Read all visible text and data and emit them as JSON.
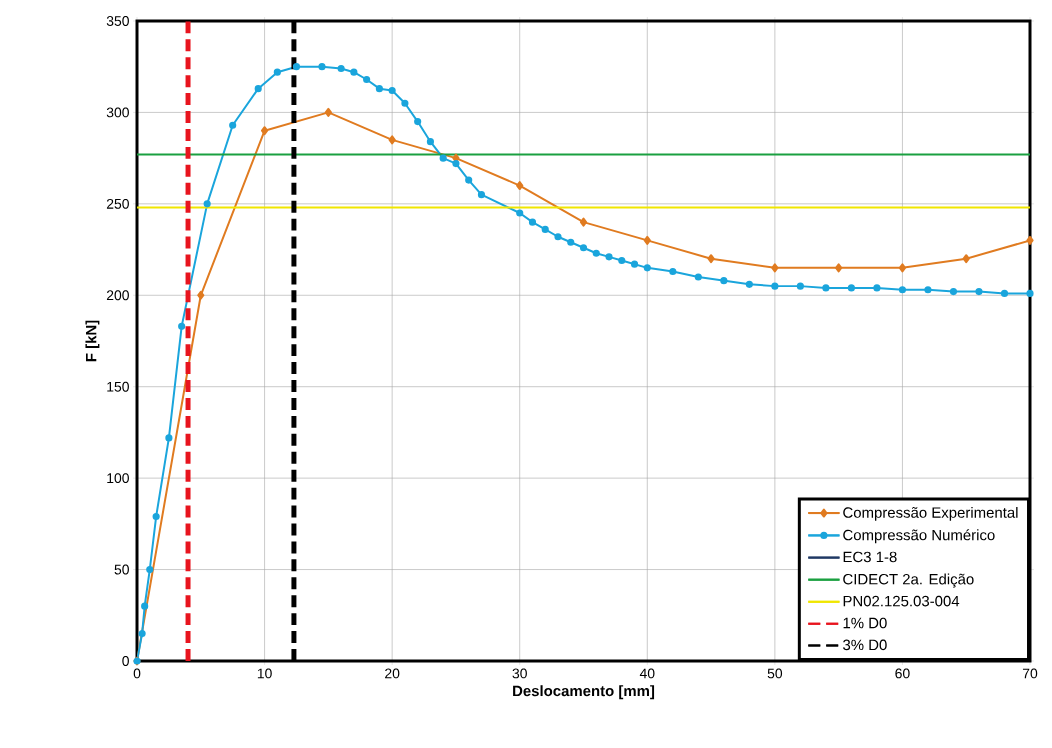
{
  "chart_data": {
    "type": "line",
    "xlabel": "Deslocamento  [mm]",
    "ylabel": "F [kN]",
    "xlim": [
      0,
      70
    ],
    "ylim": [
      0,
      350
    ],
    "xticks": [
      0,
      10,
      20,
      30,
      40,
      50,
      60,
      70
    ],
    "yticks": [
      0,
      50,
      100,
      150,
      200,
      250,
      300,
      350
    ],
    "grid": true,
    "legend": "bottom right",
    "series": [
      {
        "name": "Compressão Experimental",
        "color": "#e07b20",
        "marker": "diamond",
        "x": [
          0,
          5,
          10,
          15,
          20,
          25,
          30,
          35,
          40,
          45,
          50,
          55,
          60,
          65,
          70
        ],
        "values": [
          0,
          200,
          290,
          300,
          285,
          275,
          260,
          240,
          230,
          220,
          215,
          215,
          215,
          220,
          230
        ]
      },
      {
        "name": "Compressão Numérico",
        "color": "#1aa5dc",
        "marker": "circle",
        "x": [
          0,
          0.4,
          0.6,
          1,
          1.5,
          2.5,
          3.5,
          5.5,
          7.5,
          9.5,
          11,
          12.5,
          14.5,
          16,
          17,
          18,
          19,
          20,
          21,
          22,
          23,
          24,
          25,
          26,
          27,
          30,
          31,
          32,
          33,
          34,
          35,
          36,
          37,
          38,
          39,
          40,
          42,
          44,
          46,
          48,
          50,
          52,
          54,
          56,
          58,
          60,
          62,
          64,
          66,
          68,
          70
        ],
        "values": [
          0,
          15,
          30,
          50,
          79,
          122,
          183,
          250,
          293,
          313,
          322,
          325,
          325,
          324,
          322,
          318,
          313,
          312,
          305,
          295,
          284,
          275,
          272,
          263,
          255,
          245,
          240,
          236,
          232,
          229,
          226,
          223,
          221,
          219,
          217,
          215,
          213,
          210,
          208,
          206,
          205,
          205,
          204,
          204,
          204,
          203,
          203,
          202,
          202,
          201,
          201
        ]
      },
      {
        "name": "EC3 1-8",
        "color": "#1f3864",
        "marker": "none",
        "values": [
          null,
          null
        ]
      },
      {
        "name": "CIDECT 2a. Edição",
        "color": "#1aa040",
        "marker": "none",
        "x": [
          0,
          70
        ],
        "values": [
          277,
          277
        ]
      },
      {
        "name": "PN02.125.03-004",
        "color": "#f0e600",
        "marker": "none",
        "x": [
          0,
          70
        ],
        "values": [
          248,
          248
        ]
      },
      {
        "name": "1% D0",
        "color": "#e8141e",
        "marker": "none",
        "line_style": "dashed",
        "x": [
          4,
          4
        ],
        "values": [
          0,
          350
        ]
      },
      {
        "name": "3% D0",
        "color": "#000000",
        "marker": "none",
        "line_style": "dashed",
        "x": [
          12.3,
          12.3
        ],
        "values": [
          0,
          350
        ]
      }
    ]
  }
}
